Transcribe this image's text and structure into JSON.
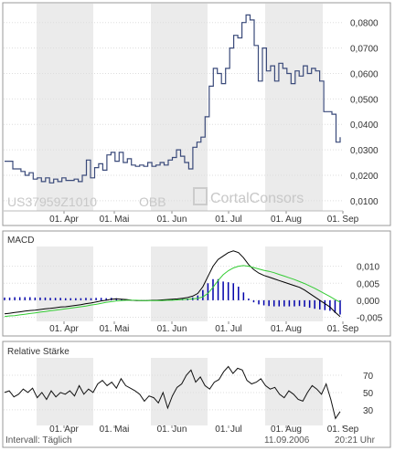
{
  "chart_data": [
    {
      "type": "line",
      "panel": "price",
      "title": "",
      "x_ticks": [
        "01. Apr",
        "01. Mai",
        "01. Jun",
        "01. Jul",
        "01. Aug",
        "01. Sep"
      ],
      "y_ticks": [
        "0,0800",
        "0,0700",
        "0,0600",
        "0,0500",
        "0,0400",
        "0,0300",
        "0,0200",
        "0,0100"
      ],
      "ylim": [
        0.006,
        0.086
      ],
      "grid": true,
      "watermark": {
        "isin": "US37959Z1010",
        "exchange": "OBB",
        "brand": "CortalConsors"
      },
      "series": [
        {
          "values": [
            0.0255,
            0.0255,
            0.0225,
            0.0225,
            0.0215,
            0.02,
            0.021,
            0.0185,
            0.019,
            0.0175,
            0.019,
            0.017,
            0.0185,
            0.0175,
            0.019,
            0.018,
            0.018,
            0.0185,
            0.0175,
            0.02,
            0.026,
            0.019,
            0.023,
            0.0245,
            0.022,
            0.028,
            0.029,
            0.0255,
            0.029,
            0.025,
            0.0265,
            0.024,
            0.0235,
            0.024,
            0.0235,
            0.025,
            0.0235,
            0.024,
            0.025,
            0.024,
            0.026,
            0.027,
            0.03,
            0.0275,
            0.025,
            0.0225,
            0.031,
            0.033,
            0.035,
            0.043,
            0.055,
            0.062,
            0.06,
            0.056,
            0.062,
            0.07,
            0.075,
            0.074,
            0.08,
            0.083,
            0.081,
            0.071,
            0.057,
            0.07,
            0.061,
            0.063,
            0.057,
            0.064,
            0.062,
            0.06,
            0.056,
            0.061,
            0.059,
            0.063,
            0.06,
            0.062,
            0.061,
            0.057,
            0.045,
            0.045,
            0.044,
            0.033,
            0.035
          ]
        }
      ]
    },
    {
      "type": "line",
      "panel": "macd",
      "title": "MACD",
      "x_ticks": [
        "01. Apr",
        "01. Mai",
        "01. Jun",
        "01. Jul",
        "01. Aug",
        "01. Sep"
      ],
      "y_ticks": [
        "0,010",
        "0,005",
        "0,000",
        "-0,005"
      ],
      "ylim": [
        -0.0062,
        0.0158
      ],
      "grid": true,
      "series": [
        {
          "color": "#000000",
          "values": [
            -0.004,
            -0.0038,
            -0.0036,
            -0.0034,
            -0.0032,
            -0.003,
            -0.0029,
            -0.0027,
            -0.0025,
            -0.0024,
            -0.0022,
            -0.002,
            -0.0019,
            -0.0017,
            -0.0015,
            -0.0013,
            -0.001,
            -0.0008,
            -0.0005,
            -0.0002,
            0.0,
            0.0003,
            0.0004,
            0.0003,
            0.0002,
            0.0,
            -0.0001,
            -0.0001,
            -0.0001,
            0.0,
            0.0,
            0.0001,
            0.0002,
            0.0003,
            0.0004,
            0.0006,
            0.0008,
            0.0012,
            0.002,
            0.004,
            0.007,
            0.01,
            0.012,
            0.013,
            0.014,
            0.0145,
            0.014,
            0.0125,
            0.0105,
            0.009,
            0.008,
            0.0073,
            0.0068,
            0.0063,
            0.0058,
            0.0053,
            0.0048,
            0.0043,
            0.0038,
            0.003,
            0.002,
            0.001,
            0.0,
            -0.001,
            -0.002,
            -0.0035,
            -0.0048
          ]
        },
        {
          "color": "#33cc33",
          "values": [
            -0.0048,
            -0.0046,
            -0.0045,
            -0.0043,
            -0.0041,
            -0.0039,
            -0.0037,
            -0.0035,
            -0.0033,
            -0.0031,
            -0.0029,
            -0.0027,
            -0.0025,
            -0.0023,
            -0.0021,
            -0.0019,
            -0.0017,
            -0.0014,
            -0.0012,
            -0.0009,
            -0.0006,
            -0.0004,
            -0.0002,
            -0.0001,
            0.0,
            0.0,
            0.0,
            -0.0001,
            -0.0001,
            -0.0001,
            -0.0001,
            -0.0001,
            0.0,
            0.0,
            0.0001,
            0.0002,
            0.0003,
            0.0004,
            0.0006,
            0.001,
            0.002,
            0.0038,
            0.0058,
            0.0075,
            0.0087,
            0.0095,
            0.01,
            0.0102,
            0.01,
            0.0096,
            0.0092,
            0.0088,
            0.0085,
            0.0081,
            0.0076,
            0.0071,
            0.0066,
            0.0061,
            0.0055,
            0.0049,
            0.0042,
            0.0035,
            0.0027,
            0.0019,
            0.0011,
            0.0002,
            -0.0006
          ]
        }
      ],
      "histogram": {
        "color": "#0000aa",
        "values": [
          0.0008,
          0.0008,
          0.0009,
          0.0009,
          0.0009,
          0.0009,
          0.0008,
          0.0008,
          0.0008,
          0.0007,
          0.0007,
          0.0007,
          0.0006,
          0.0006,
          0.0006,
          0.0006,
          0.0007,
          0.0006,
          0.0007,
          0.0007,
          0.0006,
          0.0007,
          0.0006,
          0.0004,
          0.0002,
          0.0,
          -0.0001,
          0.0,
          0.0,
          0.0001,
          0.0001,
          0.0002,
          0.0002,
          0.0003,
          0.0003,
          0.0004,
          0.0005,
          0.0008,
          0.0014,
          0.003,
          0.005,
          0.0062,
          0.0062,
          0.0055,
          0.0053,
          0.005,
          0.004,
          0.0023,
          0.0005,
          -0.0006,
          -0.0012,
          -0.0015,
          -0.0017,
          -0.0018,
          -0.0018,
          -0.0018,
          -0.0018,
          -0.0018,
          -0.0017,
          -0.0019,
          -0.0022,
          -0.0025,
          -0.0027,
          -0.0029,
          -0.0031,
          -0.0037,
          -0.0042
        ]
      }
    },
    {
      "type": "line",
      "panel": "rsi",
      "title": "Relative Stärke",
      "x_ticks": [
        "01. Apr",
        "01. Mai",
        "01. Jun",
        "01. Jul",
        "01. Aug",
        "01. Sep"
      ],
      "y_ticks": [
        "70",
        "50",
        "30"
      ],
      "ylim": [
        12,
        90
      ],
      "grid": true,
      "series": [
        {
          "values": [
            50,
            52,
            45,
            48,
            54,
            50,
            55,
            44,
            50,
            42,
            52,
            45,
            50,
            48,
            52,
            46,
            58,
            48,
            54,
            50,
            60,
            64,
            58,
            62,
            55,
            66,
            58,
            55,
            52,
            48,
            40,
            46,
            44,
            38,
            50,
            32,
            46,
            56,
            60,
            70,
            76,
            62,
            68,
            58,
            54,
            62,
            65,
            74,
            80,
            72,
            78,
            76,
            64,
            60,
            62,
            66,
            58,
            54,
            56,
            48,
            44,
            52,
            48,
            42,
            40,
            50,
            58,
            54,
            48,
            60,
            42,
            20,
            28
          ]
        }
      ],
      "footer": {
        "left": "Intervall: Täglich",
        "date": "11.09.2006",
        "time": "20:21 Uhr"
      }
    }
  ]
}
